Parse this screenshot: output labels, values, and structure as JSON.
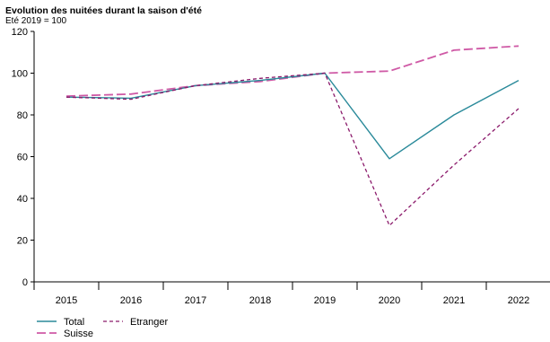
{
  "chart_data": {
    "type": "line",
    "title": "Evolution des nuitées durant la saison d'été",
    "subtitle": "Eté 2019 = 100",
    "xlabel": "",
    "ylabel": "",
    "categories": [
      "2015",
      "2016",
      "2017",
      "2018",
      "2019",
      "2020",
      "2021",
      "2022"
    ],
    "ylim": [
      0,
      120
    ],
    "yticks": [
      0,
      20,
      40,
      60,
      80,
      100,
      120
    ],
    "grid": false,
    "legend_position": "bottom-left",
    "series": [
      {
        "name": "Total",
        "values": [
          88.5,
          88,
          94,
          96.5,
          100,
          59,
          80,
          96.5
        ],
        "color": "#2a8a9a",
        "dash": "solid"
      },
      {
        "name": "Etranger",
        "values": [
          88.5,
          87.5,
          94,
          97.5,
          100,
          27,
          56,
          83
        ],
        "color": "#8b1a6b",
        "dash": "dashed-short"
      },
      {
        "name": "Suisse",
        "values": [
          89,
          90,
          94,
          96,
          100,
          101,
          111,
          113
        ],
        "color": "#cf5aa6",
        "dash": "dashed-long"
      }
    ]
  }
}
